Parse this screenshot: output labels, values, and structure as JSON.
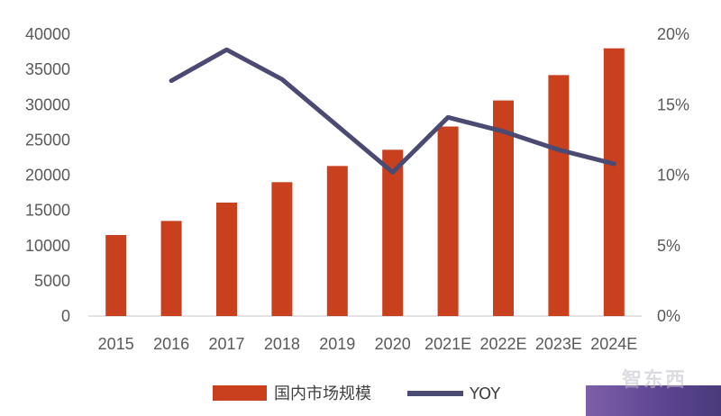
{
  "chart_data": {
    "type": "bar+line",
    "categories": [
      "2015",
      "2016",
      "2017",
      "2018",
      "2019",
      "2020",
      "2021E",
      "2022E",
      "2023E",
      "2024E"
    ],
    "series": [
      {
        "name": "国内市场规模",
        "type": "bar",
        "axis": "left",
        "color": "#c9401f",
        "values": [
          11500,
          13500,
          16100,
          19000,
          21300,
          23600,
          26900,
          30600,
          34200,
          38000
        ]
      },
      {
        "name": "YOY",
        "type": "line",
        "axis": "right",
        "color": "#4b4a72",
        "values": [
          null,
          0.167,
          0.189,
          0.168,
          null,
          0.102,
          0.141,
          0.131,
          0.118,
          0.108
        ]
      }
    ],
    "left_axis": {
      "ticks": [
        "0",
        "5000",
        "10000",
        "15000",
        "20000",
        "25000",
        "30000",
        "35000",
        "40000"
      ],
      "range": [
        0,
        40000
      ]
    },
    "right_axis": {
      "ticks": [
        "0%",
        "5%",
        "10%",
        "15%",
        "20%"
      ],
      "range": [
        0,
        0.2
      ]
    },
    "legend": {
      "position": "bottom",
      "items": [
        "国内市场规模",
        "YOY"
      ]
    },
    "grid": false
  },
  "watermark": {
    "logo_text": "智东西"
  }
}
